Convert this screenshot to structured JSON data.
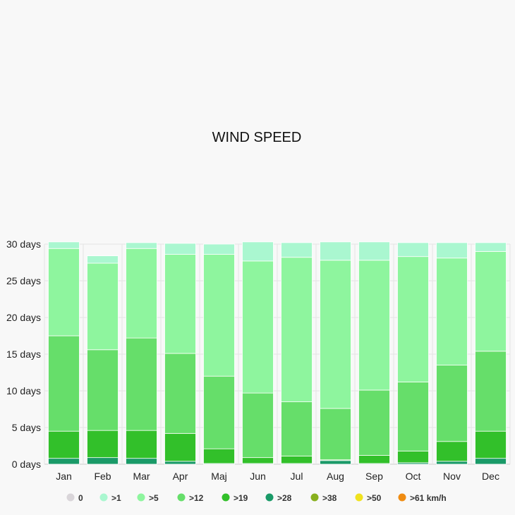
{
  "chart_data": {
    "type": "bar",
    "stacked": true,
    "title": "WIND SPEED",
    "xlabel": "",
    "ylabel": "",
    "categories": [
      "Jan",
      "Feb",
      "Mar",
      "Apr",
      "Maj",
      "Jun",
      "Jul",
      "Aug",
      "Sep",
      "Oct",
      "Nov",
      "Dec"
    ],
    "y_ticks": [
      "0 days",
      "5 days",
      "10 days",
      "15 days",
      "20 days",
      "25 days",
      "30 days"
    ],
    "ylim": [
      0,
      30
    ],
    "grid": true,
    "legend_position": "bottom",
    "series": [
      {
        "name": "0",
        "color": "#d9d5d9",
        "values": [
          0,
          0,
          0,
          0,
          0,
          0,
          0,
          0,
          0,
          0,
          0,
          0
        ]
      },
      {
        "name": ">28",
        "color": "#1a9a68",
        "values": [
          0.8,
          0.9,
          0.8,
          0.4,
          0.1,
          0.1,
          0.1,
          0.5,
          0.1,
          0.2,
          0.4,
          0.8
        ]
      },
      {
        "name": ">19",
        "color": "#32c02a",
        "values": [
          3.7,
          3.7,
          3.8,
          3.8,
          2.0,
          0.8,
          1.0,
          0.1,
          1.1,
          1.6,
          2.7,
          3.7
        ]
      },
      {
        "name": ">12",
        "color": "#66de6a",
        "values": [
          13.0,
          11.0,
          12.6,
          10.9,
          9.9,
          8.8,
          7.4,
          7.0,
          8.9,
          9.4,
          10.4,
          10.9
        ]
      },
      {
        "name": ">5",
        "color": "#8ef59e",
        "values": [
          11.9,
          11.8,
          12.2,
          13.5,
          16.6,
          18.0,
          19.7,
          20.2,
          17.7,
          17.1,
          14.6,
          13.6
        ]
      },
      {
        "name": ">1",
        "color": "#aaf7d0",
        "values": [
          0.9,
          1.0,
          0.8,
          1.5,
          1.4,
          2.6,
          2.0,
          2.5,
          2.5,
          1.9,
          2.1,
          1.2
        ]
      },
      {
        "name": ">38",
        "color": "#88b01e",
        "values": [
          0,
          0,
          0,
          0,
          0,
          0,
          0,
          0,
          0,
          0,
          0,
          0
        ]
      },
      {
        "name": ">50",
        "color": "#f0e21e",
        "values": [
          0,
          0,
          0,
          0,
          0,
          0,
          0,
          0,
          0,
          0,
          0,
          0
        ]
      },
      {
        "name": ">61 km/h",
        "color": "#ef8c12",
        "values": [
          0,
          0,
          0,
          0,
          0,
          0,
          0,
          0,
          0,
          0,
          0,
          0
        ]
      }
    ],
    "legend_order": [
      "0",
      ">1",
      ">5",
      ">12",
      ">19",
      ">28",
      ">38",
      ">50",
      ">61 km/h"
    ],
    "colors": {
      "grid": "#e4e4e4",
      "axis": "#cccccc",
      "background": "#f8f8f8"
    }
  }
}
